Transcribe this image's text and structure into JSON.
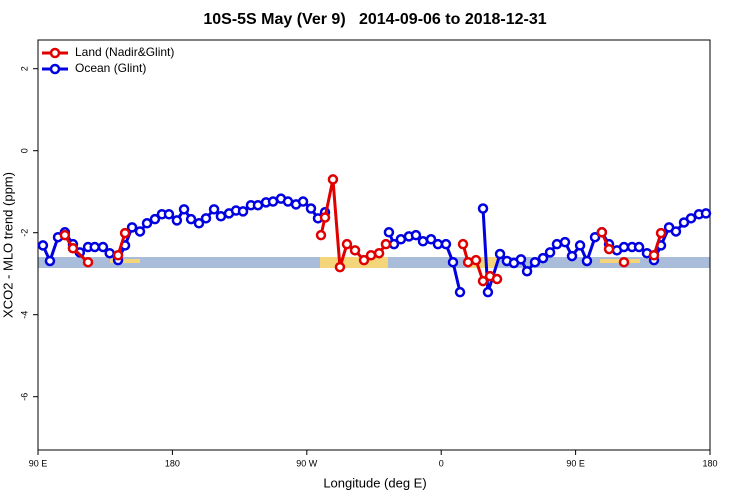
{
  "chart_data": {
    "type": "line",
    "title": "10S-5S May (Ver 9)   2014-09-06 to 2018-12-31",
    "x_label": "Longitude (deg E)",
    "y_label": "XCO2 - MLO trend (ppm)",
    "xlim": [
      90,
      540
    ],
    "xticks": [
      {
        "value": 90,
        "label": "90 E"
      },
      {
        "value": 180,
        "label": "180"
      },
      {
        "value": 270,
        "label": "90 W"
      },
      {
        "value": 360,
        "label": "0"
      },
      {
        "value": 450,
        "label": "90 E"
      },
      {
        "value": 540,
        "label": "180"
      }
    ],
    "ylim": [
      -7.3,
      2.7
    ],
    "yticks": [
      -6,
      -4,
      -2,
      0,
      2
    ],
    "legend": "top-left",
    "series": [
      {
        "name": "Land (Nadir&Glint)",
        "color": "#e00000",
        "x": [
          108,
          113.4,
          123.5,
          null,
          143.6,
          148.3,
          null,
          279.5,
          282.2,
          287.5,
          292.2,
          296.9,
          302.3,
          308.3,
          313,
          318.4,
          323,
          null,
          374.6,
          378,
          383.3,
          388,
          392.7,
          397.4,
          null,
          467.6,
          472.4,
          null,
          482.4,
          null,
          502.5,
          507.2
        ],
        "values": [
          -2.06,
          -2.38,
          -2.72,
          null,
          -2.55,
          -2.01,
          null,
          -2.06,
          -1.63,
          -0.7,
          -2.84,
          -2.28,
          -2.43,
          -2.67,
          -2.55,
          -2.5,
          -2.28,
          null,
          -2.28,
          -2.72,
          -2.67,
          -3.18,
          -3.06,
          -3.13,
          null,
          -1.99,
          -2.4,
          null,
          -2.72,
          null,
          -2.55,
          -2.01
        ]
      },
      {
        "name": "Ocean (Glint)",
        "color": "#0000e0",
        "x": [
          93.3,
          98,
          103.4,
          108,
          113.4,
          118,
          123.5,
          128,
          133.5,
          138,
          143.6,
          148.3,
          153,
          158.3,
          163,
          168.3,
          173,
          177.7,
          183,
          187.8,
          192.5,
          197.8,
          202.5,
          207.9,
          212.5,
          217.9,
          222.6,
          227.3,
          232.6,
          237.3,
          242.7,
          247.4,
          252.7,
          257.4,
          262.8,
          267.5,
          272.8,
          277.5,
          282.2,
          null,
          325,
          328.4,
          333,
          338.4,
          343.1,
          347.8,
          353.2,
          357.8,
          363.2,
          367.9,
          372.6,
          null,
          388,
          391.3,
          399.4,
          404,
          408.7,
          413.4,
          417.5,
          422.8,
          428.2,
          432.9,
          437.5,
          442.9,
          447.6,
          453,
          457.6,
          463,
          467.6,
          472.4,
          477.7,
          482.4,
          487.8,
          492.5,
          497.8,
          502.5,
          507.2,
          512.6,
          517.2,
          522.6,
          527.3,
          532.6,
          537.3
        ],
        "values": [
          -2.31,
          -2.69,
          -2.11,
          -1.99,
          -2.28,
          -2.48,
          -2.35,
          -2.35,
          -2.35,
          -2.5,
          -2.67,
          -2.31,
          -1.87,
          -1.97,
          -1.77,
          -1.67,
          -1.55,
          -1.55,
          -1.7,
          -1.43,
          -1.67,
          -1.77,
          -1.65,
          -1.43,
          -1.6,
          -1.53,
          -1.46,
          -1.48,
          -1.33,
          -1.33,
          -1.26,
          -1.24,
          -1.17,
          -1.24,
          -1.31,
          -1.24,
          -1.41,
          -1.65,
          -1.5,
          null,
          -1.99,
          -2.28,
          -2.16,
          -2.09,
          -2.06,
          -2.21,
          -2.16,
          -2.28,
          -2.28,
          -2.72,
          -3.45,
          null,
          -1.41,
          -3.45,
          -2.52,
          -2.69,
          -2.74,
          -2.65,
          -2.94,
          -2.72,
          -2.62,
          -2.48,
          -2.28,
          -2.23,
          -2.57,
          -2.31,
          -2.69,
          -2.11,
          -1.99,
          -2.28,
          -2.43,
          -2.35,
          -2.35,
          -2.35,
          -2.5,
          -2.67,
          -2.31,
          -1.87,
          -1.97,
          -1.75,
          -1.65,
          -1.55,
          -1.53
        ]
      }
    ]
  }
}
